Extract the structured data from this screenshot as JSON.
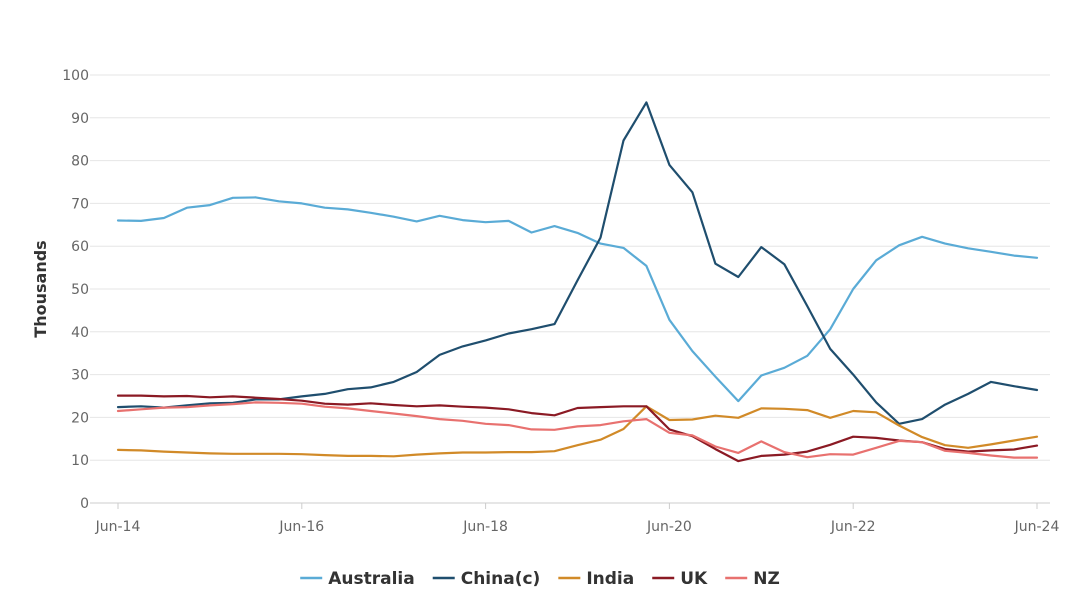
{
  "chart_data": {
    "type": "line",
    "title": "",
    "xlabel": "",
    "ylabel": "Thousands",
    "ylim": [
      0,
      100
    ],
    "yticks": [
      0,
      10,
      20,
      30,
      40,
      50,
      60,
      70,
      80,
      90,
      100
    ],
    "x_ticks": [
      "Jun-14",
      "Jun-16",
      "Jun-18",
      "Jun-20",
      "Jun-22",
      "Jun-24"
    ],
    "x": [
      "Jun-14",
      "Sep-14",
      "Dec-14",
      "Mar-15",
      "Jun-15",
      "Sep-15",
      "Dec-15",
      "Mar-16",
      "Jun-16",
      "Sep-16",
      "Dec-16",
      "Mar-17",
      "Jun-17",
      "Sep-17",
      "Dec-17",
      "Mar-18",
      "Jun-18",
      "Sep-18",
      "Dec-18",
      "Mar-19",
      "Jun-19",
      "Sep-19",
      "Dec-19",
      "Mar-20",
      "Jun-20",
      "Sep-20",
      "Dec-20",
      "Mar-21",
      "Jun-21",
      "Sep-21",
      "Dec-21",
      "Mar-22",
      "Jun-22",
      "Sep-22",
      "Dec-22",
      "Mar-23",
      "Jun-23",
      "Sep-23",
      "Dec-23",
      "Mar-24",
      "Jun-24"
    ],
    "grid": true,
    "legend_position": "bottom",
    "series": [
      {
        "name": "Australia",
        "color": "#5aabd6",
        "values": [
          66.0,
          65.9,
          66.6,
          69.0,
          69.6,
          71.3,
          71.4,
          70.5,
          70.0,
          69.0,
          68.6,
          67.8,
          66.9,
          65.8,
          67.1,
          66.1,
          65.6,
          65.9,
          63.2,
          64.7,
          63.1,
          60.6,
          59.6,
          55.4,
          42.8,
          35.5,
          29.5,
          23.8,
          29.8,
          31.6,
          34.4,
          40.6,
          50.0,
          56.7,
          60.2,
          62.2,
          60.6,
          59.5,
          58.7,
          57.8,
          57.3
        ]
      },
      {
        "name": "China(c)",
        "color": "#1f4e6e",
        "values": [
          22.4,
          22.6,
          22.3,
          22.8,
          23.3,
          23.4,
          24.2,
          24.2,
          24.9,
          25.5,
          26.6,
          27.0,
          28.3,
          30.6,
          34.6,
          36.6,
          38.0,
          39.6,
          40.6,
          41.8,
          52.0,
          62.0,
          84.7,
          93.6,
          79.0,
          72.6,
          55.9,
          52.8,
          59.8,
          55.8,
          46.0,
          36.0,
          30.0,
          23.5,
          18.5,
          19.6,
          23.0,
          25.5,
          28.3,
          27.3,
          26.4
        ]
      },
      {
        "name": "India",
        "color": "#d18a28",
        "values": [
          12.4,
          12.3,
          12.0,
          11.8,
          11.6,
          11.5,
          11.5,
          11.5,
          11.4,
          11.2,
          11.0,
          11.0,
          10.9,
          11.3,
          11.6,
          11.8,
          11.8,
          11.9,
          11.9,
          12.1,
          13.5,
          14.8,
          17.3,
          22.6,
          19.4,
          19.5,
          20.4,
          19.9,
          22.1,
          22.0,
          21.7,
          19.9,
          21.5,
          21.2,
          18.1,
          15.4,
          13.5,
          12.9,
          13.7,
          14.6,
          15.5
        ]
      },
      {
        "name": "UK",
        "color": "#8b1a24",
        "values": [
          25.1,
          25.1,
          24.9,
          25.0,
          24.7,
          24.9,
          24.6,
          24.3,
          23.9,
          23.2,
          23.0,
          23.3,
          22.9,
          22.6,
          22.8,
          22.5,
          22.3,
          21.9,
          21.0,
          20.5,
          22.2,
          22.4,
          22.6,
          22.6,
          17.2,
          15.6,
          12.6,
          9.8,
          11.0,
          11.3,
          12.0,
          13.6,
          15.5,
          15.2,
          14.6,
          14.2,
          12.6,
          12.0,
          12.3,
          12.5,
          13.4
        ]
      },
      {
        "name": "NZ",
        "color": "#e8716f",
        "values": [
          21.5,
          21.9,
          22.3,
          22.4,
          22.8,
          23.1,
          23.5,
          23.4,
          23.2,
          22.5,
          22.1,
          21.5,
          20.9,
          20.3,
          19.6,
          19.2,
          18.5,
          18.2,
          17.2,
          17.1,
          17.9,
          18.2,
          19.1,
          19.6,
          16.4,
          15.8,
          13.2,
          11.7,
          14.4,
          11.9,
          10.7,
          11.4,
          11.3,
          12.9,
          14.5,
          14.2,
          12.2,
          11.7,
          11.1,
          10.6,
          10.6
        ]
      }
    ]
  }
}
